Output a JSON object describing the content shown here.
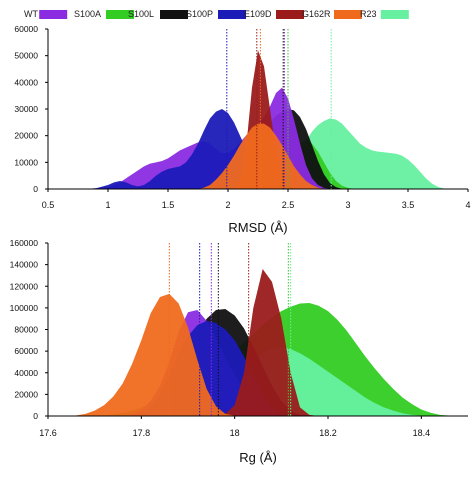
{
  "legend": [
    {
      "label": "WT",
      "color": "#8a2be2"
    },
    {
      "label": "S100A",
      "color": "#33cc22"
    },
    {
      "label": "S100L",
      "color": "#111111"
    },
    {
      "label": "S100P",
      "color": "#1b1bb8"
    },
    {
      "label": "E109D",
      "color": "#9b1b1b"
    },
    {
      "label": "G162R",
      "color": "#f06a1e"
    },
    {
      "label": "R23",
      "color": "#66f0a0"
    }
  ],
  "chart_data": [
    {
      "type": "area",
      "xlabel": "RMSD (Å)",
      "ylabel": "",
      "xlim": [
        0.5,
        4
      ],
      "ylim": [
        0,
        60000
      ],
      "xticks": [
        "0.5",
        "1",
        "1.5",
        "2",
        "2.5",
        "3",
        "3.5",
        "4"
      ],
      "yticks": [
        "0",
        "10000",
        "20000",
        "30000",
        "40000",
        "50000",
        "60000"
      ],
      "x": [
        0.8,
        0.9,
        1.0,
        1.05,
        1.1,
        1.15,
        1.2,
        1.25,
        1.3,
        1.35,
        1.4,
        1.45,
        1.5,
        1.55,
        1.6,
        1.65,
        1.7,
        1.75,
        1.8,
        1.85,
        1.9,
        1.95,
        2.0,
        2.05,
        2.1,
        2.15,
        2.2,
        2.25,
        2.3,
        2.35,
        2.4,
        2.45,
        2.5,
        2.55,
        2.6,
        2.65,
        2.7,
        2.75,
        2.8,
        2.85,
        2.9,
        2.95,
        3.0,
        3.05,
        3.1,
        3.15,
        3.2,
        3.25,
        3.3,
        3.35,
        3.4,
        3.45,
        3.5,
        3.55,
        3.6,
        3.65,
        3.7,
        3.75,
        3.8,
        3.85,
        3.9
      ],
      "series": [
        {
          "name": "R23",
          "color": "#66f0a0",
          "values": [
            0,
            0,
            0,
            0,
            0,
            0,
            0,
            0,
            0,
            0,
            0,
            0,
            0,
            0,
            0,
            0,
            0,
            0,
            0,
            0,
            0,
            0,
            0,
            0,
            0,
            0,
            0,
            0,
            0,
            500,
            1500,
            3000,
            6000,
            10000,
            14000,
            18000,
            21500,
            24000,
            25500,
            26500,
            26000,
            24500,
            22000,
            19500,
            17000,
            15500,
            14500,
            14000,
            13800,
            13500,
            13200,
            12500,
            11000,
            9000,
            6500,
            4000,
            2000,
            800,
            200,
            0,
            0
          ]
        },
        {
          "name": "S100A",
          "color": "#33cc22",
          "values": [
            0,
            0,
            0,
            0,
            0,
            0,
            0,
            0,
            0,
            0,
            0,
            0,
            0,
            0,
            0,
            0,
            0,
            0,
            0,
            0,
            0,
            0,
            0,
            0,
            0,
            0,
            0,
            0,
            500,
            1500,
            3000,
            6000,
            10000,
            14000,
            17000,
            18500,
            17000,
            14000,
            10000,
            6000,
            3000,
            1200,
            400,
            100,
            0,
            0,
            0,
            0,
            0,
            0,
            0,
            0,
            0,
            0,
            0,
            0,
            0,
            0,
            0,
            0,
            0
          ]
        },
        {
          "name": "S100L",
          "color": "#111111",
          "values": [
            0,
            0,
            0,
            0,
            0,
            0,
            0,
            0,
            0,
            0,
            0,
            0,
            0,
            0,
            0,
            0,
            0,
            0,
            0,
            0,
            0,
            0,
            500,
            2000,
            5000,
            9000,
            13500,
            18000,
            22000,
            25000,
            27500,
            29000,
            30000,
            29500,
            27000,
            22500,
            16500,
            10500,
            5500,
            2200,
            700,
            100,
            0,
            0,
            0,
            0,
            0,
            0,
            0,
            0,
            0,
            0,
            0,
            0,
            0,
            0,
            0,
            0,
            0,
            0,
            0
          ]
        },
        {
          "name": "WT",
          "color": "#8a2be2",
          "values": [
            0,
            300,
            800,
            1500,
            2500,
            4000,
            5500,
            7000,
            8500,
            9500,
            10000,
            10500,
            11500,
            13000,
            14500,
            15500,
            16500,
            17500,
            18000,
            17000,
            15000,
            13500,
            13500,
            15000,
            17500,
            20000,
            22500,
            24500,
            27000,
            31000,
            36000,
            38000,
            34000,
            26000,
            17000,
            9000,
            4000,
            1500,
            400,
            100,
            0,
            0,
            0,
            0,
            0,
            0,
            0,
            0,
            0,
            0,
            0,
            0,
            0,
            0,
            0,
            0,
            0,
            0,
            0,
            0,
            0
          ]
        },
        {
          "name": "S100P",
          "color": "#1b1bb8",
          "values": [
            0,
            300,
            1500,
            2500,
            3000,
            2500,
            1500,
            1000,
            1500,
            3000,
            5000,
            6500,
            7500,
            8000,
            8500,
            10000,
            13000,
            17000,
            22000,
            26500,
            29000,
            30000,
            28500,
            25000,
            20000,
            15000,
            11000,
            8000,
            5500,
            3500,
            2000,
            1000,
            400,
            100,
            0,
            0,
            0,
            0,
            0,
            0,
            0,
            0,
            0,
            0,
            0,
            0,
            0,
            0,
            0,
            0,
            0,
            0,
            0,
            0,
            0,
            0,
            0,
            0,
            0,
            0,
            0
          ]
        },
        {
          "name": "E109D",
          "color": "#9b1b1b",
          "values": [
            0,
            0,
            0,
            0,
            0,
            0,
            0,
            0,
            0,
            0,
            0,
            0,
            0,
            0,
            0,
            0,
            0,
            0,
            0,
            0,
            0,
            0,
            0,
            500,
            3000,
            15000,
            38000,
            52000,
            46000,
            30000,
            14000,
            5000,
            1500,
            300,
            0,
            0,
            0,
            0,
            0,
            0,
            0,
            0,
            0,
            0,
            0,
            0,
            0,
            0,
            0,
            0,
            0,
            0,
            0,
            0,
            0,
            0,
            0,
            0,
            0,
            0,
            0
          ]
        },
        {
          "name": "G162R",
          "color": "#f06a1e",
          "values": [
            0,
            0,
            0,
            0,
            0,
            0,
            0,
            0,
            0,
            0,
            0,
            0,
            0,
            0,
            0,
            0,
            0,
            0,
            500,
            1500,
            3500,
            6000,
            9000,
            12500,
            16500,
            20000,
            23000,
            24500,
            24500,
            23000,
            20000,
            16500,
            12500,
            8500,
            5500,
            3000,
            1500,
            500,
            100,
            0,
            0,
            0,
            0,
            0,
            0,
            0,
            0,
            0,
            0,
            0,
            0,
            0,
            0,
            0,
            0,
            0,
            0,
            0,
            0,
            0,
            0
          ]
        }
      ],
      "vlines": [
        {
          "color": "#1b1bb8",
          "x": 1.99
        },
        {
          "color": "#9b1b1b",
          "x": 2.24
        },
        {
          "color": "#f06a1e",
          "x": 2.27
        },
        {
          "color": "#111111",
          "x": 2.46
        },
        {
          "color": "#8a2be2",
          "x": 2.47
        },
        {
          "color": "#33cc22",
          "x": 2.5
        },
        {
          "color": "#66f0a0",
          "x": 2.86
        }
      ]
    },
    {
      "type": "area",
      "xlabel": "Rg (Å)",
      "ylabel": "",
      "xlim": [
        17.6,
        18.5
      ],
      "ylim": [
        0,
        160000
      ],
      "xticks": [
        "17.6",
        "17.8",
        "18",
        "18.2",
        "18.4"
      ],
      "yticks": [
        "0",
        "20000",
        "40000",
        "60000",
        "80000",
        "100000",
        "120000",
        "140000",
        "160000"
      ],
      "x": [
        17.64,
        17.66,
        17.68,
        17.7,
        17.72,
        17.74,
        17.76,
        17.78,
        17.8,
        17.82,
        17.84,
        17.86,
        17.88,
        17.9,
        17.92,
        17.94,
        17.96,
        17.98,
        18.0,
        18.02,
        18.04,
        18.06,
        18.08,
        18.1,
        18.12,
        18.14,
        18.16,
        18.18,
        18.2,
        18.22,
        18.24,
        18.26,
        18.28,
        18.3,
        18.32,
        18.34,
        18.36,
        18.38,
        18.4,
        18.42,
        18.44,
        18.46,
        18.48
      ],
      "series": [
        {
          "name": "S100A",
          "color": "#33cc22",
          "values": [
            0,
            0,
            0,
            0,
            500,
            1500,
            3000,
            5000,
            8000,
            11000,
            14000,
            18000,
            22000,
            27000,
            32000,
            38000,
            44000,
            52000,
            60000,
            68000,
            76000,
            84000,
            91000,
            97000,
            101000,
            104000,
            104500,
            102000,
            97000,
            89000,
            79000,
            67000,
            55000,
            44000,
            34000,
            25000,
            17000,
            11000,
            6000,
            3000,
            1000,
            300,
            0
          ]
        },
        {
          "name": "R23",
          "color": "#66f0a0",
          "values": [
            0,
            0,
            0,
            0,
            0,
            0,
            0,
            0,
            0,
            0,
            0,
            0,
            0,
            500,
            2000,
            5000,
            10000,
            18000,
            28000,
            40000,
            51000,
            59000,
            63000,
            64000,
            62000,
            58000,
            53000,
            47000,
            41000,
            35000,
            29000,
            23000,
            17000,
            12000,
            8000,
            5000,
            2500,
            1000,
            300,
            0,
            0,
            0,
            0
          ]
        },
        {
          "name": "S100L",
          "color": "#111111",
          "values": [
            0,
            0,
            0,
            0,
            0,
            0,
            0,
            500,
            2000,
            6000,
            14000,
            26000,
            42000,
            60000,
            77000,
            90000,
            98000,
            99000,
            93000,
            81000,
            64000,
            46000,
            28000,
            14000,
            5000,
            1000,
            0,
            0,
            0,
            0,
            0,
            0,
            0,
            0,
            0,
            0,
            0,
            0,
            0,
            0,
            0,
            0,
            0
          ]
        },
        {
          "name": "WT",
          "color": "#8a2be2",
          "values": [
            0,
            0,
            0,
            0,
            0,
            0,
            500,
            2000,
            6000,
            14000,
            28000,
            50000,
            78000,
            96000,
            98000,
            88000,
            72000,
            54000,
            38000,
            24000,
            13000,
            6000,
            2000,
            500,
            0,
            0,
            0,
            0,
            0,
            0,
            0,
            0,
            0,
            0,
            0,
            0,
            0,
            0,
            0,
            0,
            0,
            0,
            0
          ]
        },
        {
          "name": "S100P",
          "color": "#1b1bb8",
          "values": [
            0,
            0,
            0,
            0,
            0,
            0,
            0,
            500,
            3000,
            9000,
            20000,
            38000,
            58000,
            74000,
            84000,
            88000,
            86000,
            80000,
            70000,
            55000,
            37000,
            20000,
            8000,
            2000,
            300,
            0,
            0,
            0,
            0,
            0,
            0,
            0,
            0,
            0,
            0,
            0,
            0,
            0,
            0,
            0,
            0,
            0,
            0
          ]
        },
        {
          "name": "E109D",
          "color": "#9b1b1b",
          "values": [
            0,
            0,
            0,
            0,
            0,
            0,
            0,
            0,
            0,
            0,
            0,
            0,
            0,
            0,
            0,
            0,
            0,
            2000,
            10000,
            40000,
            100000,
            136000,
            124000,
            90000,
            40000,
            8000,
            1000,
            0,
            0,
            0,
            0,
            0,
            0,
            0,
            0,
            0,
            0,
            0,
            0,
            0,
            0,
            0,
            0
          ]
        },
        {
          "name": "G162R",
          "color": "#f06a1e",
          "values": [
            0,
            500,
            2000,
            5000,
            10000,
            18000,
            30000,
            48000,
            70000,
            95000,
            110000,
            113000,
            104000,
            82000,
            52000,
            25000,
            9000,
            2000,
            300,
            0,
            0,
            0,
            0,
            0,
            0,
            0,
            0,
            0,
            0,
            0,
            0,
            0,
            0,
            0,
            0,
            0,
            0,
            0,
            0,
            0,
            0,
            0,
            0
          ]
        }
      ],
      "vlines": [
        {
          "color": "#f06a1e",
          "x": 17.86
        },
        {
          "color": "#1b1bb8",
          "x": 17.925
        },
        {
          "color": "#8a2be2",
          "x": 17.95
        },
        {
          "color": "#111111",
          "x": 17.965
        },
        {
          "color": "#9b1b1b",
          "x": 18.03
        },
        {
          "color": "#33cc22",
          "x": 18.115
        },
        {
          "color": "#66f0a0",
          "x": 18.12
        }
      ]
    }
  ]
}
